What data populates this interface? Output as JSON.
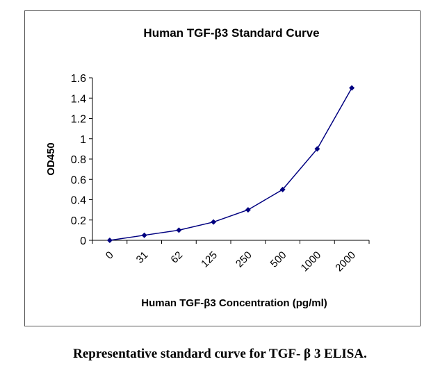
{
  "chart_data": {
    "type": "line",
    "title": "Human TGF-β3 Standard Curve",
    "xlabel": "Human TGF-β3 Concentration (pg/ml)",
    "ylabel": "OD450",
    "categories": [
      "0",
      "31",
      "62",
      "125",
      "250",
      "500",
      "1000",
      "2000"
    ],
    "values": [
      0,
      0.05,
      0.1,
      0.18,
      0.3,
      0.5,
      0.9,
      1.5
    ],
    "ylim": [
      0,
      1.6
    ],
    "yticks": [
      "0",
      "0.2",
      "0.4",
      "0.6",
      "0.8",
      "1",
      "1.2",
      "1.4",
      "1.6"
    ],
    "grid": false,
    "legend": "none",
    "series_color": "#000080",
    "marker": "diamond"
  },
  "caption": "Representative standard curve for TGF- β 3 ELISA."
}
